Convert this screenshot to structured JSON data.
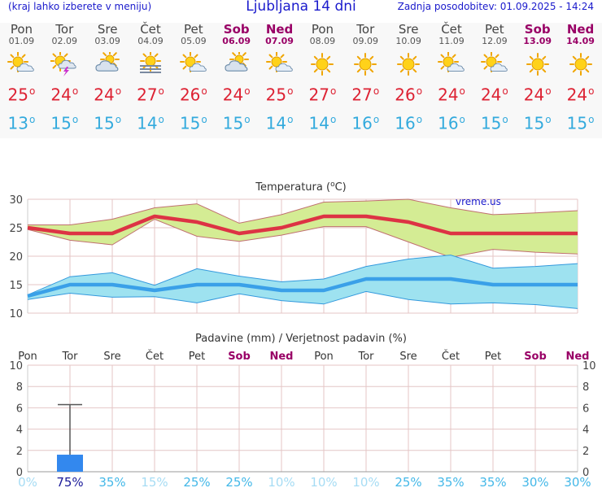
{
  "header": {
    "left": "(kraj lahko izberete v meniju)",
    "title": "Ljubljana 14 dni",
    "right": "Zadnja posodobitev: 01.09.2025 - 14:24"
  },
  "days": [
    {
      "name": "Pon",
      "date": "01.09",
      "weekend": false,
      "icon": "sun-cloud-icon",
      "tmax": "25",
      "tmin": "13"
    },
    {
      "name": "Tor",
      "date": "02.09",
      "weekend": false,
      "icon": "sun-cloud-storm-icon",
      "tmax": "24",
      "tmin": "15"
    },
    {
      "name": "Sre",
      "date": "03.09",
      "weekend": false,
      "icon": "cloudy-sun-icon",
      "tmax": "24",
      "tmin": "15"
    },
    {
      "name": "Čet",
      "date": "04.09",
      "weekend": false,
      "icon": "sun-fog-icon",
      "tmax": "27",
      "tmin": "14"
    },
    {
      "name": "Pet",
      "date": "05.09",
      "weekend": false,
      "icon": "sun-cloud-icon",
      "tmax": "26",
      "tmin": "15"
    },
    {
      "name": "Sob",
      "date": "06.09",
      "weekend": true,
      "icon": "cloudy-sun-icon",
      "tmax": "24",
      "tmin": "15"
    },
    {
      "name": "Ned",
      "date": "07.09",
      "weekend": true,
      "icon": "sun-cloud-icon",
      "tmax": "25",
      "tmin": "14"
    },
    {
      "name": "Pon",
      "date": "08.09",
      "weekend": false,
      "icon": "sun-icon",
      "tmax": "27",
      "tmin": "14"
    },
    {
      "name": "Tor",
      "date": "09.09",
      "weekend": false,
      "icon": "sun-icon",
      "tmax": "27",
      "tmin": "16"
    },
    {
      "name": "Sre",
      "date": "10.09",
      "weekend": false,
      "icon": "sun-icon",
      "tmax": "26",
      "tmin": "16"
    },
    {
      "name": "Čet",
      "date": "11.09",
      "weekend": false,
      "icon": "sun-cloud-icon",
      "tmax": "24",
      "tmin": "16"
    },
    {
      "name": "Pet",
      "date": "12.09",
      "weekend": false,
      "icon": "sun-cloud-icon",
      "tmax": "24",
      "tmin": "15"
    },
    {
      "name": "Sob",
      "date": "13.09",
      "weekend": true,
      "icon": "sun-icon",
      "tmax": "24",
      "tmin": "15"
    },
    {
      "name": "Ned",
      "date": "14.09",
      "weekend": true,
      "icon": "sun-icon",
      "tmax": "24",
      "tmin": "15"
    }
  ],
  "degree_symbol": "o",
  "colors": {
    "header_text": "#1a1acc",
    "weekend": "#990066",
    "tmax": "#dd2233",
    "tmin": "#33aadd",
    "max_band": "#d4ec94",
    "min_band": "#9ee2f0",
    "bar": "#3388ee"
  },
  "chart_data": [
    {
      "type": "line",
      "title": "Temperatura (°C)",
      "title_main": "Temperatura (",
      "title_deg": "o",
      "title_unit": "C)",
      "watermark": "vreme.us",
      "x": [
        "Pon",
        "Tor",
        "Sre",
        "Čet",
        "Pet",
        "Sob",
        "Ned",
        "Pon",
        "Tor",
        "Sre",
        "Čet",
        "Pet",
        "Sob",
        "Ned"
      ],
      "yticks": [
        10,
        15,
        20,
        25,
        30
      ],
      "ylim": [
        10,
        30
      ],
      "grid": true,
      "series": [
        {
          "values": [
            25,
            24,
            24,
            27,
            26,
            24,
            25,
            27,
            27,
            26,
            24,
            24,
            24,
            24
          ]
        },
        {
          "values": [
            25.5,
            25.5,
            26.5,
            28.5,
            29.2,
            25.8,
            27.3,
            29.5,
            29.7,
            30,
            28.5,
            27.3,
            27.6,
            28
          ]
        },
        {
          "values": [
            24.7,
            22.8,
            22,
            26.5,
            23.5,
            22.6,
            23.7,
            25.2,
            25.2,
            22.5,
            19.8,
            21.2,
            20.7,
            20.4
          ]
        },
        {
          "values": [
            13,
            15,
            15,
            14,
            15,
            15,
            14,
            14,
            16,
            16,
            16,
            15,
            15,
            15
          ]
        },
        {
          "values": [
            13.2,
            16.4,
            17.1,
            14.9,
            17.8,
            16.5,
            15.5,
            16,
            18.2,
            19.5,
            20.2,
            17.9,
            18.2,
            18.7
          ]
        },
        {
          "values": [
            12.4,
            13.5,
            12.8,
            12.9,
            11.8,
            13.4,
            12.2,
            11.6,
            13.8,
            12.4,
            11.6,
            11.8,
            11.5,
            10.8
          ]
        }
      ]
    },
    {
      "type": "bar",
      "title": "Padavine (mm) / Verjetnost padavin (%)",
      "categories": [
        "Pon",
        "Tor",
        "Sre",
        "Čet",
        "Pet",
        "Sob",
        "Ned",
        "Pon",
        "Tor",
        "Sre",
        "Čet",
        "Pet",
        "Sob",
        "Ned"
      ],
      "weekend": [
        false,
        false,
        false,
        false,
        false,
        true,
        true,
        false,
        false,
        false,
        false,
        false,
        true,
        true
      ],
      "yticks": [
        0,
        2,
        4,
        6,
        8,
        10
      ],
      "ylim": [
        0,
        10
      ],
      "values": [
        0,
        1.6,
        0,
        0,
        0,
        0,
        0,
        0,
        0,
        0,
        0,
        0,
        0,
        0
      ],
      "error_high": [
        0,
        6.3,
        0,
        0,
        0,
        0,
        0,
        0,
        0,
        0,
        0,
        0,
        0,
        0
      ],
      "probabilities": [
        "0%",
        "75%",
        "35%",
        "15%",
        "25%",
        "25%",
        "10%",
        "10%",
        "10%",
        "25%",
        "35%",
        "35%",
        "30%",
        "30%"
      ],
      "probability_values": [
        0,
        75,
        35,
        15,
        25,
        25,
        10,
        10,
        10,
        25,
        35,
        35,
        30,
        30
      ]
    }
  ]
}
